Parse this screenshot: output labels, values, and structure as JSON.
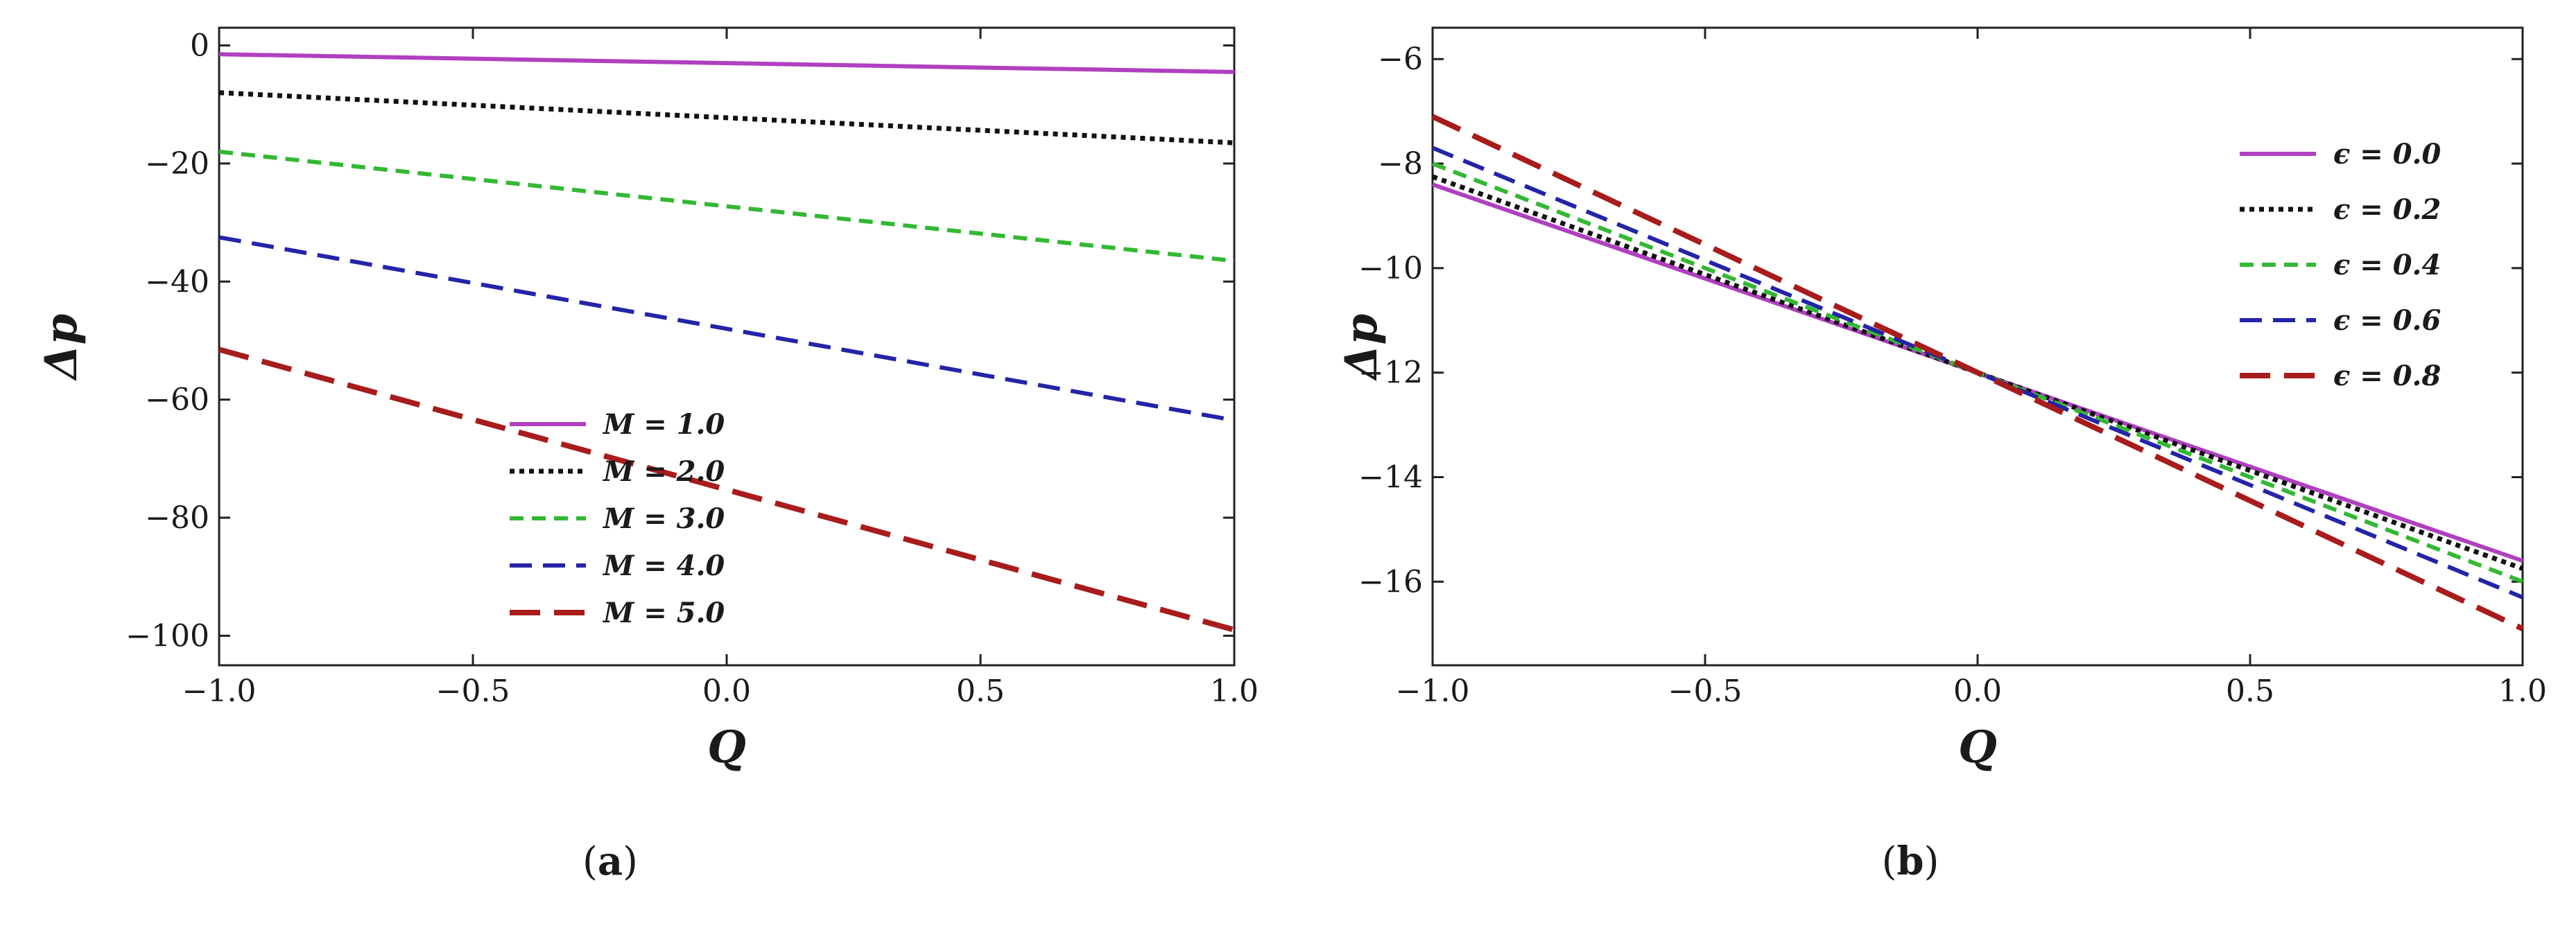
{
  "chart_data": [
    {
      "type": "line",
      "panel_label": "a",
      "xlabel": "Q",
      "ylabel": "Δp",
      "xlim": [
        -1.0,
        1.0
      ],
      "ylim": [
        -105,
        3
      ],
      "xticks": [
        -1.0,
        -0.5,
        0.0,
        0.5,
        1.0
      ],
      "xtick_labels": [
        "−1.0",
        "−0.5",
        "0.0",
        "0.5",
        "1.0"
      ],
      "yticks": [
        0,
        -20,
        -40,
        -60,
        -80,
        -100
      ],
      "ytick_labels": [
        "0",
        "−20",
        "−40",
        "−60",
        "−80",
        "−100"
      ],
      "grid": false,
      "legend_position": "center",
      "series": [
        {
          "name": "M = 1.0",
          "color": "#b040c0",
          "style": "solid",
          "x": [
            -1.0,
            1.0
          ],
          "y": [
            -1.5,
            -4.5
          ]
        },
        {
          "name": "M = 2.0",
          "color": "#111111",
          "style": "dotted",
          "x": [
            -1.0,
            1.0
          ],
          "y": [
            -8.0,
            -16.5
          ]
        },
        {
          "name": "M = 3.0",
          "color": "#33b833",
          "style": "short-dash",
          "x": [
            -1.0,
            1.0
          ],
          "y": [
            -18.0,
            -36.5
          ]
        },
        {
          "name": "M = 4.0",
          "color": "#2424a8",
          "style": "dash",
          "x": [
            -1.0,
            1.0
          ],
          "y": [
            -32.5,
            -63.5
          ]
        },
        {
          "name": "M = 5.0",
          "color": "#a81c1c",
          "style": "long-dash",
          "x": [
            -1.0,
            1.0
          ],
          "y": [
            -51.5,
            -99.0
          ]
        }
      ]
    },
    {
      "type": "line",
      "panel_label": "b",
      "xlabel": "Q",
      "ylabel": "Δp",
      "xlim": [
        -1.0,
        1.0
      ],
      "ylim": [
        -17.6,
        -5.4
      ],
      "xticks": [
        -1.0,
        -0.5,
        0.0,
        0.5,
        1.0
      ],
      "xtick_labels": [
        "−1.0",
        "−0.5",
        "0.0",
        "0.5",
        "1.0"
      ],
      "yticks": [
        -6,
        -8,
        -10,
        -12,
        -14,
        -16
      ],
      "ytick_labels": [
        "−6",
        "−8",
        "−10",
        "−12",
        "−14",
        "−16"
      ],
      "grid": false,
      "legend_position": "top-right",
      "series": [
        {
          "name": "ϵ = 0.0",
          "color": "#b040c0",
          "style": "solid",
          "x": [
            -1.0,
            1.0
          ],
          "y": [
            -8.4,
            -15.6
          ]
        },
        {
          "name": "ϵ = 0.2",
          "color": "#111111",
          "style": "dotted",
          "x": [
            -1.0,
            1.0
          ],
          "y": [
            -8.25,
            -15.75
          ]
        },
        {
          "name": "ϵ = 0.4",
          "color": "#33b833",
          "style": "short-dash",
          "x": [
            -1.0,
            1.0
          ],
          "y": [
            -8.0,
            -16.0
          ]
        },
        {
          "name": "ϵ = 0.6",
          "color": "#2424a8",
          "style": "dash",
          "x": [
            -1.0,
            1.0
          ],
          "y": [
            -7.7,
            -16.3
          ]
        },
        {
          "name": "ϵ = 0.8",
          "color": "#a81c1c",
          "style": "long-dash",
          "x": [
            -1.0,
            1.0
          ],
          "y": [
            -7.1,
            -16.9
          ]
        }
      ]
    }
  ]
}
